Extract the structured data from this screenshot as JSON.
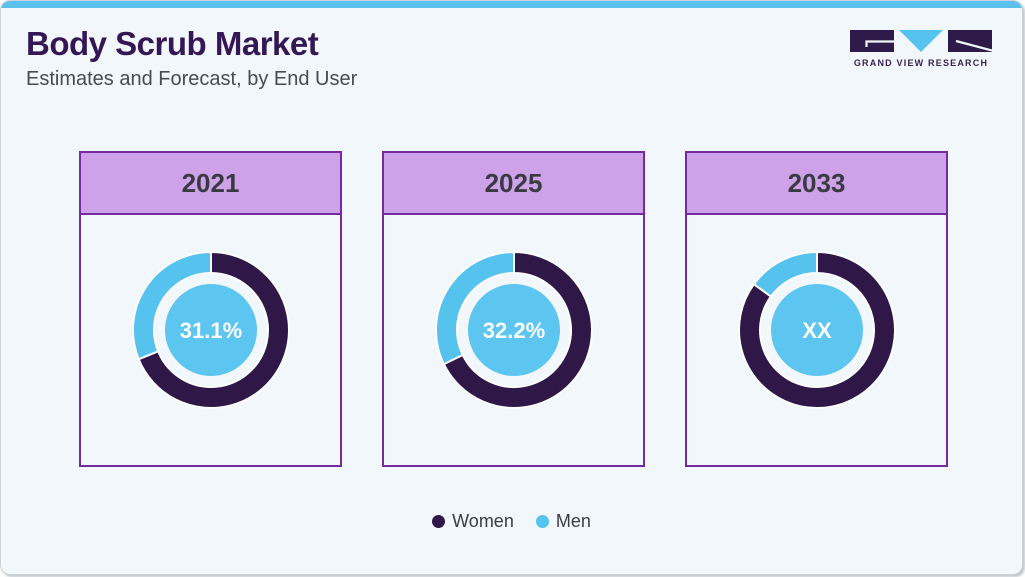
{
  "header": {
    "title": "Body Scrub Market",
    "subtitle": "Estimates and Forecast, by End User"
  },
  "logo": {
    "name": "GRAND VIEW RESEARCH"
  },
  "legend": {
    "position": "bottom",
    "items": [
      {
        "label": "Women",
        "color": "#2f1747"
      },
      {
        "label": "Men",
        "color": "#56c2ee"
      }
    ]
  },
  "colors": {
    "page_background": "#f1f7fb",
    "top_stripe": "#5bc0eb",
    "title_text": "#341754",
    "card_border": "#762aa0",
    "card_header_background": "#cda2e9",
    "women_segment": "#2f1747",
    "men_segment": "#56c2ee",
    "center_circle": "#5cc5f0",
    "center_label_text": "#ffffff"
  },
  "chart_data": {
    "type": "donut",
    "title": "Body Scrub Market",
    "subtitle": "Estimates and Forecast, by End User",
    "unit": "%",
    "legend_position": "bottom",
    "series_names": [
      "Women",
      "Men"
    ],
    "arc_direction": "men segment sweeps counterclockwise from 12 o'clock; women fills remainder clockwise",
    "charts": [
      {
        "year": "2021",
        "center_label": "31.1%",
        "values": {
          "Women": 68.9,
          "Men": 31.1
        }
      },
      {
        "year": "2025",
        "center_label": "32.2%",
        "values": {
          "Women": 67.8,
          "Men": 32.2
        }
      },
      {
        "year": "2033",
        "center_label": "XX",
        "values": {
          "Women": null,
          "Men": null
        },
        "men_arc_fraction_estimate": 0.15
      }
    ]
  }
}
